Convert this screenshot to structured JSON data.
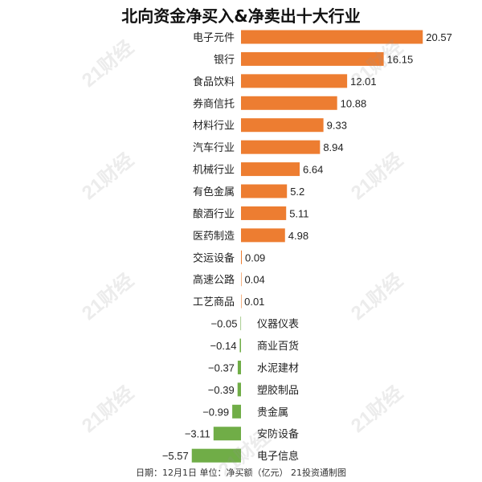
{
  "chart_data": {
    "type": "bar",
    "orientation": "horizontal",
    "title": "北向资金净买入&净卖出十大行业",
    "footer": "日期：12月1日 单位：净买额（亿元） 21投资通制图",
    "categories": [
      "电子元件",
      "银行",
      "食品饮料",
      "券商信托",
      "材料行业",
      "汽车行业",
      "机械行业",
      "有色金属",
      "酿酒行业",
      "医药制造",
      "交运设备",
      "高速公路",
      "工艺商品",
      "仪器仪表",
      "商业百货",
      "水泥建材",
      "塑胶制品",
      "贵金属",
      "安防设备",
      "电子信息"
    ],
    "values": [
      20.57,
      16.15,
      12.01,
      10.88,
      9.33,
      8.94,
      6.64,
      5.2,
      5.11,
      4.98,
      0.09,
      0.04,
      0.01,
      -0.05,
      -0.14,
      -0.37,
      -0.39,
      -0.99,
      -3.11,
      -5.57
    ],
    "value_labels": [
      "20.57",
      "16.15",
      "12.01",
      "10.88",
      "9.33",
      "8.94",
      "6.64",
      "5.2",
      "5.11",
      "4.98",
      "0.09",
      "0.04",
      "0.01",
      "−0.05",
      "−0.14",
      "−0.37",
      "−0.39",
      "−0.99",
      "−3.11",
      "−5.57"
    ],
    "colors": {
      "positive": "#ED7D31",
      "negative": "#70AD47"
    },
    "grid": false,
    "legend": "none"
  },
  "watermark": "21财经"
}
